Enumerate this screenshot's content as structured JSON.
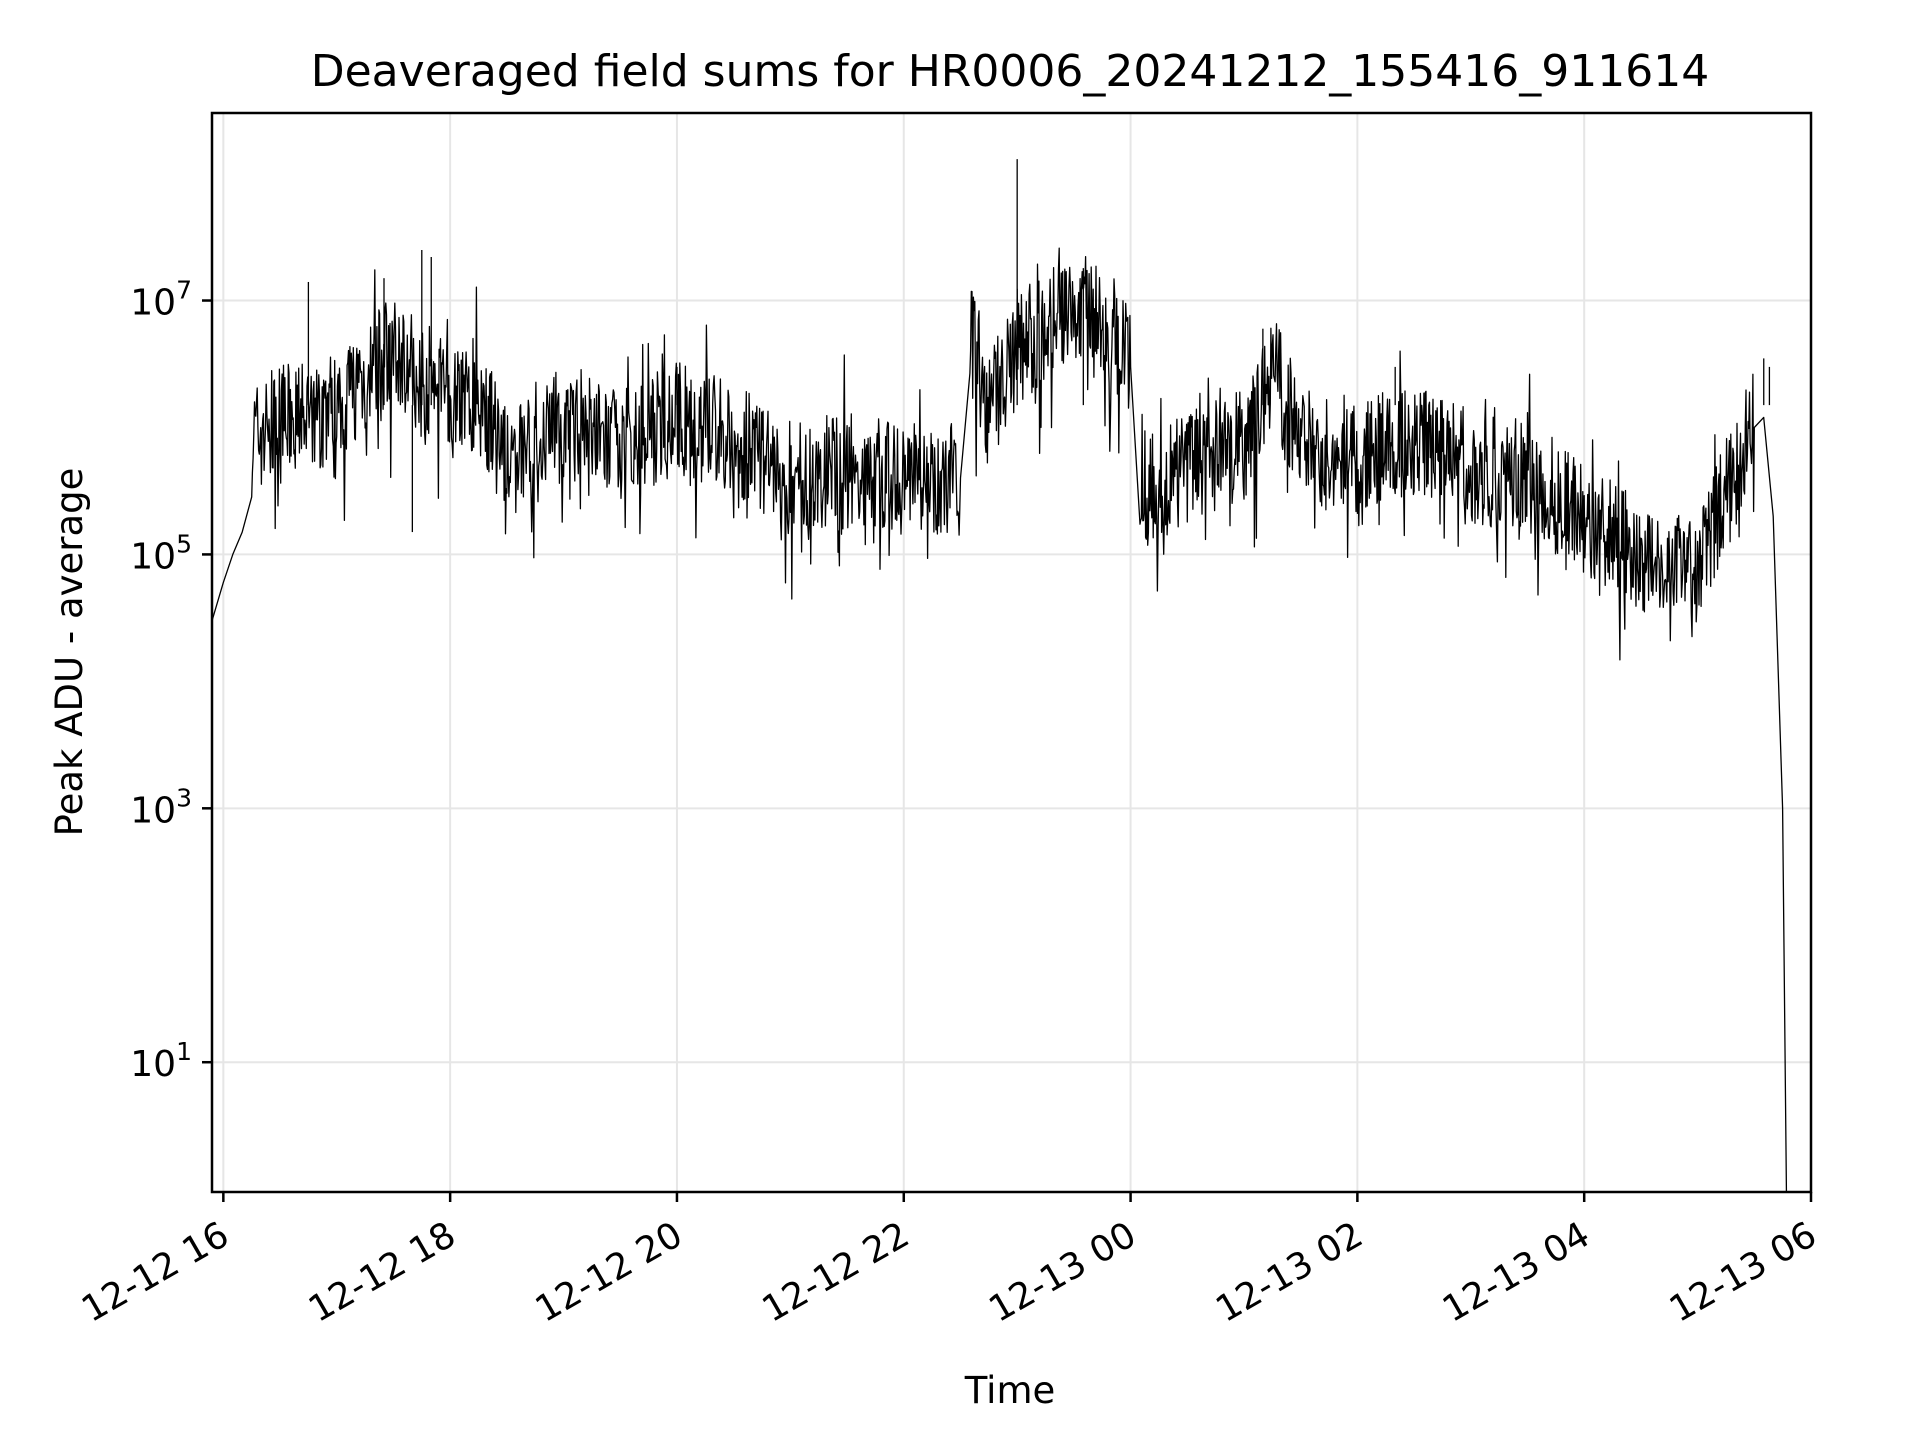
{
  "chart_data": {
    "type": "line",
    "title": "Deaveraged field sums for HR0006_20241212_155416_911614",
    "xlabel": "Time",
    "ylabel": "Peak ADU - average",
    "x_scale": "time",
    "y_scale": "log",
    "xlim": [
      "2024-12-12T15:54",
      "2024-12-13T06:00"
    ],
    "ylim": [
      0.95,
      300000000
    ],
    "grid": true,
    "legend": "none",
    "line_color": "#000000",
    "x_ticks": [
      {
        "value": "2024-12-12T16:00",
        "label": "12-12 16"
      },
      {
        "value": "2024-12-12T18:00",
        "label": "12-12 18"
      },
      {
        "value": "2024-12-12T20:00",
        "label": "12-12 20"
      },
      {
        "value": "2024-12-12T22:00",
        "label": "12-12 22"
      },
      {
        "value": "2024-12-13T00:00",
        "label": "12-13 00"
      },
      {
        "value": "2024-12-13T02:00",
        "label": "12-13 02"
      },
      {
        "value": "2024-12-13T04:00",
        "label": "12-13 04"
      },
      {
        "value": "2024-12-13T06:00",
        "label": "12-13 06"
      }
    ],
    "y_ticks": [
      {
        "value": 10,
        "base": "10",
        "exp": "1"
      },
      {
        "value": 1000,
        "base": "10",
        "exp": "3"
      },
      {
        "value": 100000,
        "base": "10",
        "exp": "5"
      },
      {
        "value": 10000000,
        "base": "10",
        "exp": "7"
      }
    ],
    "series": [
      {
        "points": [
          [
            "2024-12-12T15:54",
            30000
          ],
          [
            "2024-12-12T16:00",
            60000
          ],
          [
            "2024-12-12T16:05",
            100000
          ],
          [
            "2024-12-12T16:10",
            150000
          ],
          [
            "2024-12-12T16:15",
            800000
          ],
          [
            "2024-12-12T16:30",
            1100000
          ],
          [
            "2024-12-12T16:45",
            1200000
          ],
          [
            "2024-12-12T17:00",
            1600000
          ],
          [
            "2024-12-12T17:15",
            2500000
          ],
          [
            "2024-12-12T17:30",
            4000000
          ],
          [
            "2024-12-12T17:45",
            2500000
          ],
          [
            "2024-12-12T18:00",
            2000000
          ],
          [
            "2024-12-12T18:15",
            1800000
          ],
          [
            "2024-12-12T18:30",
            500000
          ],
          [
            "2024-12-12T18:45",
            800000
          ],
          [
            "2024-12-12T19:00",
            1000000
          ],
          [
            "2024-12-12T19:30",
            700000
          ],
          [
            "2024-12-12T20:00",
            1200000
          ],
          [
            "2024-12-12T20:30",
            800000
          ],
          [
            "2024-12-12T21:00",
            400000
          ],
          [
            "2024-12-12T21:30",
            500000
          ],
          [
            "2024-12-12T22:00",
            400000
          ],
          [
            "2024-12-12T22:30",
            400000
          ],
          [
            "2024-12-12T22:35",
            6000000
          ],
          [
            "2024-12-12T22:45",
            1500000
          ],
          [
            "2024-12-12T23:00",
            4000000
          ],
          [
            "2024-12-12T23:30",
            10000000
          ],
          [
            "2024-12-12T23:45",
            6000000
          ],
          [
            "2024-12-13T00:00",
            3000000
          ],
          [
            "2024-12-13T00:05",
            300000
          ],
          [
            "2024-12-13T00:30",
            500000
          ],
          [
            "2024-12-13T01:00",
            700000
          ],
          [
            "2024-12-13T01:15",
            3000000
          ],
          [
            "2024-12-13T01:30",
            800000
          ],
          [
            "2024-12-13T02:00",
            600000
          ],
          [
            "2024-12-13T02:30",
            800000
          ],
          [
            "2024-12-13T03:00",
            500000
          ],
          [
            "2024-12-13T03:30",
            400000
          ],
          [
            "2024-12-13T04:00",
            200000
          ],
          [
            "2024-12-13T04:30",
            100000
          ],
          [
            "2024-12-13T05:00",
            70000
          ],
          [
            "2024-12-13T05:15",
            300000
          ],
          [
            "2024-12-13T05:30",
            1000000
          ],
          [
            "2024-12-13T05:35",
            1200000
          ],
          [
            "2024-12-13T05:40",
            200000
          ],
          [
            "2024-12-13T05:45",
            1000
          ],
          [
            "2024-12-13T05:47",
            1
          ]
        ],
        "spikes": [
          [
            "2024-12-12T16:45",
            14000000
          ],
          [
            "2024-12-12T17:25",
            15000000
          ],
          [
            "2024-12-12T17:45",
            25000000
          ],
          [
            "2024-12-12T17:50",
            22000000
          ],
          [
            "2024-12-12T17:40",
            150000
          ],
          [
            "2024-12-12T23:00",
            130000000
          ],
          [
            "2024-12-12T23:35",
            18000000
          ],
          [
            "2024-12-13T01:10",
            6000000
          ],
          [
            "2024-12-13T05:35",
            3500000
          ],
          [
            "2024-12-13T05:38",
            3000000
          ],
          [
            "2024-12-13T02:20",
            3000000
          ],
          [
            "2024-12-12T20:00",
            3000000
          ]
        ]
      }
    ]
  }
}
